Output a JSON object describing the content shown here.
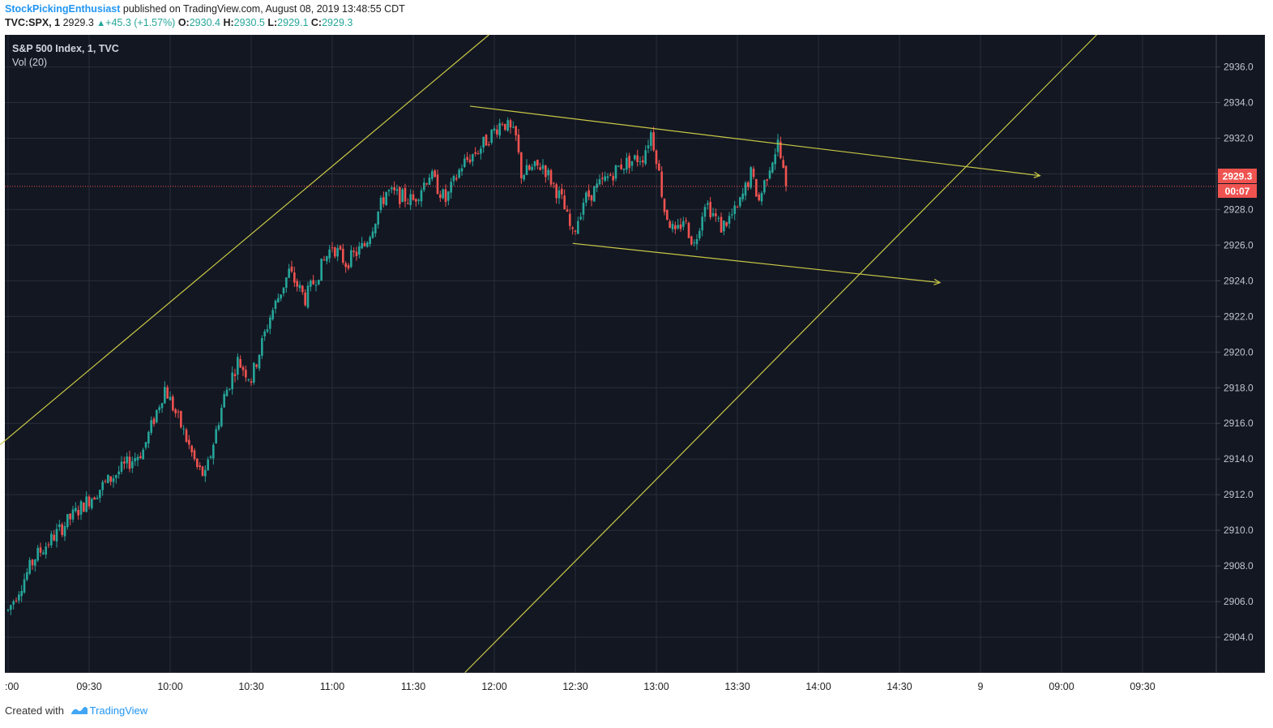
{
  "header": {
    "author": "StockPickingEnthusiast",
    "published_text": "published on TradingView.com, August 08, 2019 13:48:55 CDT",
    "symbol": "TVC:SPX, 1",
    "last": "2929.3",
    "change": "+45.3 (+1.57%)",
    "open_label": "O:",
    "open": "2930.4",
    "high_label": "H:",
    "high": "2930.5",
    "low_label": "L:",
    "low": "2929.1",
    "close_label": "C:",
    "close": "2929.3"
  },
  "legend": {
    "title": "S&P 500 Index, 1, TVC",
    "vol": "Vol (20)"
  },
  "footer": {
    "created_with": "Created with",
    "brand": "TradingView"
  },
  "colors": {
    "background": "#131722",
    "grid": "#2a2e39",
    "up": "#26a69a",
    "down": "#ef5350",
    "trendline": "#c8c845",
    "price_line": "#ef5350",
    "axis_text": "#c3c6ce"
  },
  "chart_data": {
    "type": "candlestick",
    "y_ticks": [
      "2904.0",
      "2906.0",
      "2908.0",
      "2910.0",
      "2912.0",
      "2914.0",
      "2916.0",
      "2918.0",
      "2920.0",
      "2922.0",
      "2924.0",
      "2926.0",
      "2928.0",
      "2930.0",
      "2932.0",
      "2934.0",
      "2936.0"
    ],
    "ylim": [
      2902.0,
      2937.8
    ],
    "x_ticks": [
      ":00",
      "09:30",
      "10:00",
      "10:30",
      "11:00",
      "11:30",
      "12:00",
      "12:30",
      "13:00",
      "13:30",
      "14:00",
      "14:30",
      "9",
      "09:00",
      "09:30"
    ],
    "last_price_label": "2929.3",
    "countdown_label": "00:07",
    "last_price": 2929.3,
    "session_close_tracks": [
      {
        "time": "09:00",
        "price": 2905.5
      },
      {
        "time": "09:10",
        "price": 2908.5
      },
      {
        "time": "09:25",
        "price": 2911.0
      },
      {
        "time": "09:35",
        "price": 2912.5
      },
      {
        "time": "09:50",
        "price": 2914.5
      },
      {
        "time": "09:58",
        "price": 2918.0
      },
      {
        "time": "10:05",
        "price": 2915.5
      },
      {
        "time": "10:10",
        "price": 2913.5
      },
      {
        "time": "10:13",
        "price": 2913.0
      },
      {
        "time": "10:20",
        "price": 2917.5
      },
      {
        "time": "10:25",
        "price": 2919.5
      },
      {
        "time": "10:30",
        "price": 2918.5
      },
      {
        "time": "10:37",
        "price": 2922.0
      },
      {
        "time": "10:44",
        "price": 2924.5
      },
      {
        "time": "10:50",
        "price": 2923.0
      },
      {
        "time": "10:55",
        "price": 2924.5
      },
      {
        "time": "11:00",
        "price": 2926.0
      },
      {
        "time": "11:05",
        "price": 2925.0
      },
      {
        "time": "11:12",
        "price": 2926.0
      },
      {
        "time": "11:20",
        "price": 2929.0
      },
      {
        "time": "11:30",
        "price": 2928.5
      },
      {
        "time": "11:36",
        "price": 2930.0
      },
      {
        "time": "11:42",
        "price": 2928.5
      },
      {
        "time": "11:48",
        "price": 2930.5
      },
      {
        "time": "11:55",
        "price": 2931.5
      },
      {
        "time": "12:03",
        "price": 2933.0
      },
      {
        "time": "12:08",
        "price": 2932.0
      },
      {
        "time": "12:10",
        "price": 2930.0
      },
      {
        "time": "12:18",
        "price": 2930.5
      },
      {
        "time": "12:25",
        "price": 2928.5
      },
      {
        "time": "12:29",
        "price": 2926.5
      },
      {
        "time": "12:33",
        "price": 2928.5
      },
      {
        "time": "12:40",
        "price": 2929.5
      },
      {
        "time": "12:47",
        "price": 2930.5
      },
      {
        "time": "12:55",
        "price": 2931.0
      },
      {
        "time": "12:58",
        "price": 2932.3
      },
      {
        "time": "13:00",
        "price": 2931.0
      },
      {
        "time": "13:03",
        "price": 2928.0
      },
      {
        "time": "13:07",
        "price": 2926.5
      },
      {
        "time": "13:10",
        "price": 2927.5
      },
      {
        "time": "13:14",
        "price": 2926.0
      },
      {
        "time": "13:18",
        "price": 2928.5
      },
      {
        "time": "13:24",
        "price": 2927.0
      },
      {
        "time": "13:30",
        "price": 2928.0
      },
      {
        "time": "13:35",
        "price": 2930.0
      },
      {
        "time": "13:38",
        "price": 2928.5
      },
      {
        "time": "13:42",
        "price": 2930.5
      },
      {
        "time": "13:45",
        "price": 2931.7
      },
      {
        "time": "13:48",
        "price": 2929.3
      }
    ],
    "trendlines": [
      {
        "name": "upper-channel-line",
        "t1": "08:57",
        "p1": 2914.8,
        "t2": "11:58",
        "p2": 2937.8
      },
      {
        "name": "lower-channel-line",
        "t1": "11:49",
        "p1": 2902.0,
        "t2": "15:43",
        "p2": 2937.8
      },
      {
        "name": "upper-descending-line",
        "t1": "11:51",
        "p1": 2933.8,
        "t2": "15:22",
        "p2": 2929.9,
        "arrow": true
      },
      {
        "name": "lower-descending-line",
        "t1": "12:29",
        "p1": 2926.1,
        "t2": "14:45",
        "p2": 2923.9,
        "arrow": true
      }
    ]
  }
}
